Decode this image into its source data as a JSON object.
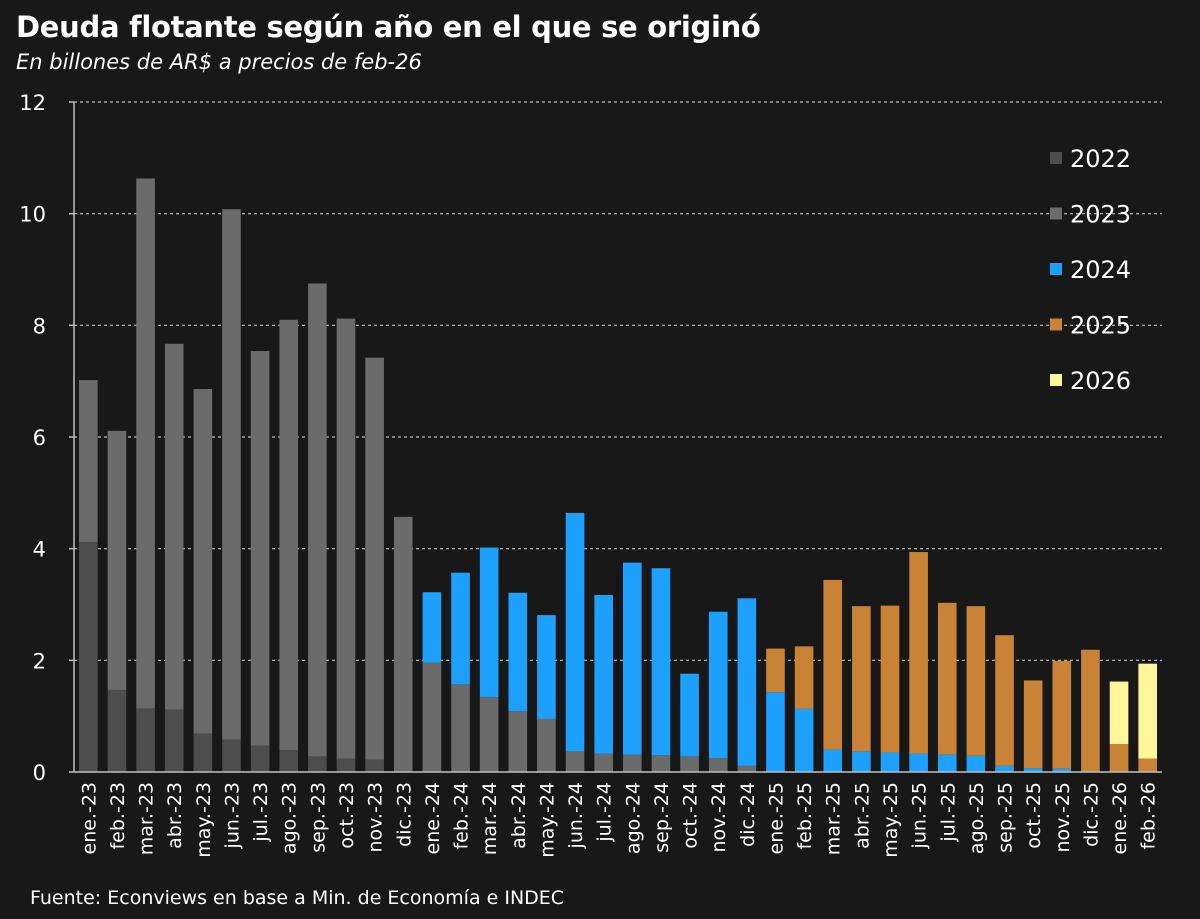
{
  "header": {
    "title": "Deuda flotante según año en el que se originó",
    "subtitle": "En billones de AR$ a precios de feb-26"
  },
  "footer": {
    "source": "Fuente: Econviews en base a Min. de Economía e INDEC"
  },
  "colors": {
    "background": "#181818",
    "2022": "#4d4d4d",
    "2023": "#6b6b6b",
    "2024": "#1ea0ff",
    "2025": "#c98336",
    "2026": "#fff59a",
    "grid": "#bfbfbf",
    "axis": "#bfbfbf"
  },
  "chart_data": {
    "type": "bar",
    "stacked": true,
    "ylim": [
      0,
      12
    ],
    "yticks": [
      0,
      2,
      4,
      6,
      8,
      10,
      12
    ],
    "grid": "horizontal dashed",
    "legend_position": "right",
    "categories": [
      "ene.-23",
      "feb.-23",
      "mar.-23",
      "abr.-23",
      "may.-23",
      "jun.-23",
      "jul.-23",
      "ago.-23",
      "sep.-23",
      "oct.-23",
      "nov.-23",
      "dic.-23",
      "ene.-24",
      "feb.-24",
      "mar.-24",
      "abr.-24",
      "may.-24",
      "jun.-24",
      "jul.-24",
      "ago.-24",
      "sep.-24",
      "oct.-24",
      "nov.-24",
      "dic.-24",
      "ene.-25",
      "feb.-25",
      "mar.-25",
      "abr.-25",
      "may.-25",
      "jun.-25",
      "jul.-25",
      "ago.-25",
      "sep.-25",
      "oct.-25",
      "nov.-25",
      "dic.-25",
      "ene.-26",
      "feb.-26"
    ],
    "series": [
      {
        "name": "2022",
        "values": [
          4.12,
          1.47,
          1.14,
          1.12,
          0.69,
          0.58,
          0.47,
          0.39,
          0.28,
          0.24,
          0.22,
          0,
          0,
          0,
          0,
          0,
          0,
          0,
          0,
          0,
          0,
          0,
          0,
          0,
          0,
          0,
          0,
          0,
          0,
          0,
          0,
          0,
          0,
          0,
          0,
          0,
          0,
          0
        ]
      },
      {
        "name": "2023",
        "values": [
          2.9,
          4.64,
          9.49,
          6.55,
          6.17,
          9.5,
          7.07,
          7.71,
          8.47,
          7.88,
          7.2,
          4.57,
          1.96,
          1.57,
          1.34,
          1.09,
          0.95,
          0.37,
          0.33,
          0.31,
          0.3,
          0.28,
          0.25,
          0.11,
          0,
          0,
          0,
          0,
          0,
          0,
          0,
          0,
          0,
          0,
          0,
          0,
          0,
          0
        ]
      },
      {
        "name": "2024",
        "values": [
          0,
          0,
          0,
          0,
          0,
          0,
          0,
          0,
          0,
          0,
          0,
          0,
          1.26,
          2.0,
          2.68,
          2.12,
          1.86,
          4.27,
          2.84,
          3.44,
          3.35,
          1.48,
          2.62,
          3.0,
          1.43,
          1.13,
          0.4,
          0.37,
          0.35,
          0.33,
          0.31,
          0.29,
          0.11,
          0.07,
          0.06,
          0,
          0,
          0
        ]
      },
      {
        "name": "2025",
        "values": [
          0,
          0,
          0,
          0,
          0,
          0,
          0,
          0,
          0,
          0,
          0,
          0,
          0,
          0,
          0,
          0,
          0,
          0,
          0,
          0,
          0,
          0,
          0,
          0,
          0.78,
          1.12,
          3.04,
          2.6,
          2.63,
          3.61,
          2.72,
          2.68,
          2.34,
          1.57,
          1.93,
          2.19,
          0.5,
          0.24
        ]
      },
      {
        "name": "2026",
        "values": [
          0,
          0,
          0,
          0,
          0,
          0,
          0,
          0,
          0,
          0,
          0,
          0,
          0,
          0,
          0,
          0,
          0,
          0,
          0,
          0,
          0,
          0,
          0,
          0,
          0,
          0,
          0,
          0,
          0,
          0,
          0,
          0,
          0,
          0,
          0,
          0,
          1.12,
          1.7
        ]
      }
    ]
  }
}
